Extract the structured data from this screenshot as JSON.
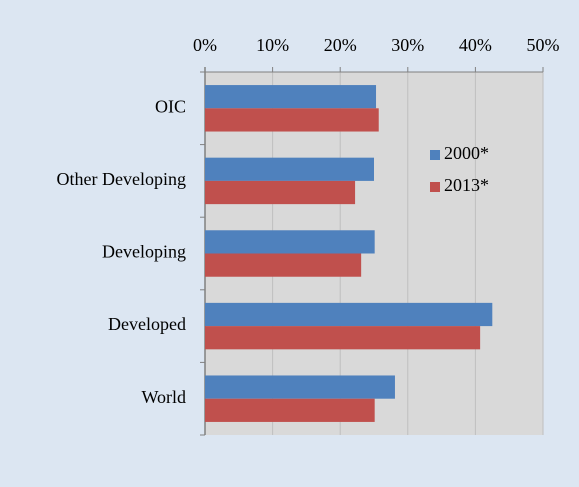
{
  "chart_data": {
    "type": "hbar",
    "categories": [
      "OIC",
      "Other Developing",
      "Developing",
      "Developed",
      "World"
    ],
    "series": [
      {
        "name": "2000*",
        "color": "#4f81bd",
        "values": [
          25.3,
          25.0,
          25.1,
          42.5,
          28.1
        ]
      },
      {
        "name": "2013*",
        "color": "#c0504d",
        "values": [
          25.7,
          22.2,
          23.1,
          40.7,
          25.1
        ]
      }
    ],
    "xlim": [
      0,
      50
    ],
    "xticks": [
      {
        "value": 0,
        "label": "0%"
      },
      {
        "value": 10,
        "label": "10%"
      },
      {
        "value": 20,
        "label": "20%"
      },
      {
        "value": 30,
        "label": "30%"
      },
      {
        "value": 40,
        "label": "40%"
      },
      {
        "value": 50,
        "label": "50%"
      }
    ],
    "grid": true,
    "legend": "upper right"
  }
}
